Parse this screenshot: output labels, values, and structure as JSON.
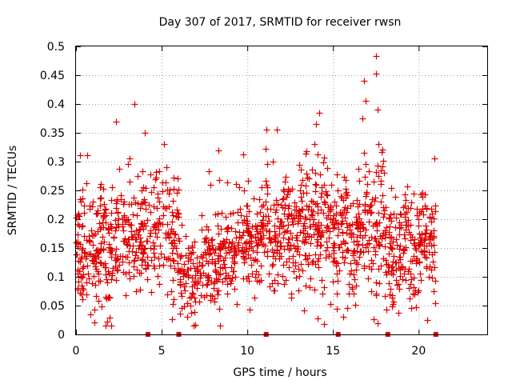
{
  "chart_data": {
    "type": "scatter",
    "title": "Day 307 of 2017, SRMTID for receiver rwsn",
    "xlabel": "GPS time / hours",
    "ylabel": "SRMTID / TECUs",
    "xlim": [
      0,
      24
    ],
    "ylim": [
      0,
      0.5
    ],
    "xticks": [
      0,
      5,
      10,
      15,
      20
    ],
    "xtick_labels": [
      "0",
      "5",
      "10",
      "15",
      "20"
    ],
    "yticks": [
      0,
      0.05,
      0.1,
      0.15,
      0.2,
      0.25,
      0.3,
      0.35,
      0.4,
      0.45,
      0.5
    ],
    "ytick_labels": [
      "0",
      "0.05",
      "0.1",
      "0.15",
      "0.2",
      "0.25",
      "0.3",
      "0.35",
      "0.4",
      "0.45",
      "0.5"
    ],
    "grid": true,
    "marker": "+",
    "color": "#e00000",
    "baseline_markers_x": [
      4.2,
      6.0,
      11.1,
      15.3,
      18.2,
      21.0
    ],
    "series": [
      {
        "name": "SRMTID",
        "segments": [
          {
            "x_start": 0.0,
            "x_end": 2.0,
            "y_center": 0.14,
            "spread": 0.05,
            "count": 170
          },
          {
            "x_start": 2.0,
            "x_end": 4.0,
            "y_center": 0.16,
            "spread": 0.05,
            "count": 150
          },
          {
            "x_start": 4.0,
            "x_end": 6.0,
            "y_center": 0.17,
            "spread": 0.05,
            "count": 130
          },
          {
            "x_start": 6.0,
            "x_end": 7.5,
            "y_center": 0.1,
            "spread": 0.035,
            "count": 90
          },
          {
            "x_start": 7.5,
            "x_end": 9.0,
            "y_center": 0.13,
            "spread": 0.04,
            "count": 110
          },
          {
            "x_start": 9.0,
            "x_end": 11.0,
            "y_center": 0.16,
            "spread": 0.04,
            "count": 150
          },
          {
            "x_start": 11.0,
            "x_end": 13.0,
            "y_center": 0.17,
            "spread": 0.05,
            "count": 150
          },
          {
            "x_start": 13.0,
            "x_end": 15.0,
            "y_center": 0.18,
            "spread": 0.055,
            "count": 160
          },
          {
            "x_start": 15.0,
            "x_end": 16.5,
            "y_center": 0.17,
            "spread": 0.05,
            "count": 120
          },
          {
            "x_start": 16.5,
            "x_end": 18.0,
            "y_center": 0.19,
            "spread": 0.06,
            "count": 110
          },
          {
            "x_start": 18.0,
            "x_end": 19.5,
            "y_center": 0.14,
            "spread": 0.045,
            "count": 110
          },
          {
            "x_start": 19.5,
            "x_end": 21.0,
            "y_center": 0.15,
            "spread": 0.05,
            "count": 110
          }
        ],
        "highlight_points": [
          {
            "x": 3.4,
            "y": 0.4
          },
          {
            "x": 2.35,
            "y": 0.37
          },
          {
            "x": 4.0,
            "y": 0.35
          },
          {
            "x": 8.3,
            "y": 0.32
          },
          {
            "x": 11.1,
            "y": 0.355
          },
          {
            "x": 11.7,
            "y": 0.355
          },
          {
            "x": 14.2,
            "y": 0.385
          },
          {
            "x": 14.0,
            "y": 0.365
          },
          {
            "x": 17.5,
            "y": 0.483
          },
          {
            "x": 17.5,
            "y": 0.453
          },
          {
            "x": 16.8,
            "y": 0.44
          },
          {
            "x": 16.9,
            "y": 0.405
          },
          {
            "x": 17.6,
            "y": 0.39
          },
          {
            "x": 16.7,
            "y": 0.375
          },
          {
            "x": 20.9,
            "y": 0.305
          },
          {
            "x": 20.5,
            "y": 0.025
          },
          {
            "x": 17.6,
            "y": 0.02
          },
          {
            "x": 15.6,
            "y": 0.03
          },
          {
            "x": 6.5,
            "y": 0.03
          }
        ]
      }
    ]
  }
}
